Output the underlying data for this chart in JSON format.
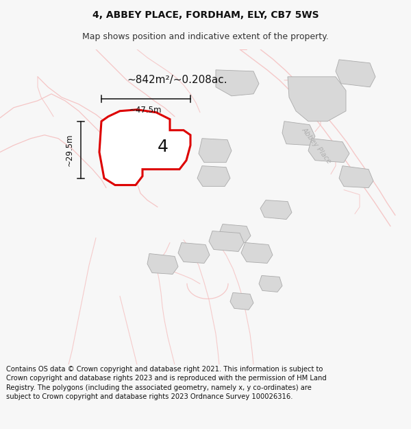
{
  "title_line1": "4, ABBEY PLACE, FORDHAM, ELY, CB7 5WS",
  "title_line2": "Map shows position and indicative extent of the property.",
  "footer_text": "Contains OS data © Crown copyright and database right 2021. This information is subject to Crown copyright and database rights 2023 and is reproduced with the permission of HM Land Registry. The polygons (including the associated geometry, namely x, y co-ordinates) are subject to Crown copyright and database rights 2023 Ordnance Survey 100026316.",
  "area_label": "~842m²/~0.208ac.",
  "width_label": "~47.5m",
  "height_label": "~29.5m",
  "plot_number": "4",
  "bg_color": "#f7f7f7",
  "map_bg": "#ffffff",
  "red_color": "#dd0000",
  "light_red": "#f5c0c0",
  "gray_building": "#d8d8d8",
  "title_fontsize": 10,
  "subtitle_fontsize": 9,
  "footer_fontsize": 7.2
}
